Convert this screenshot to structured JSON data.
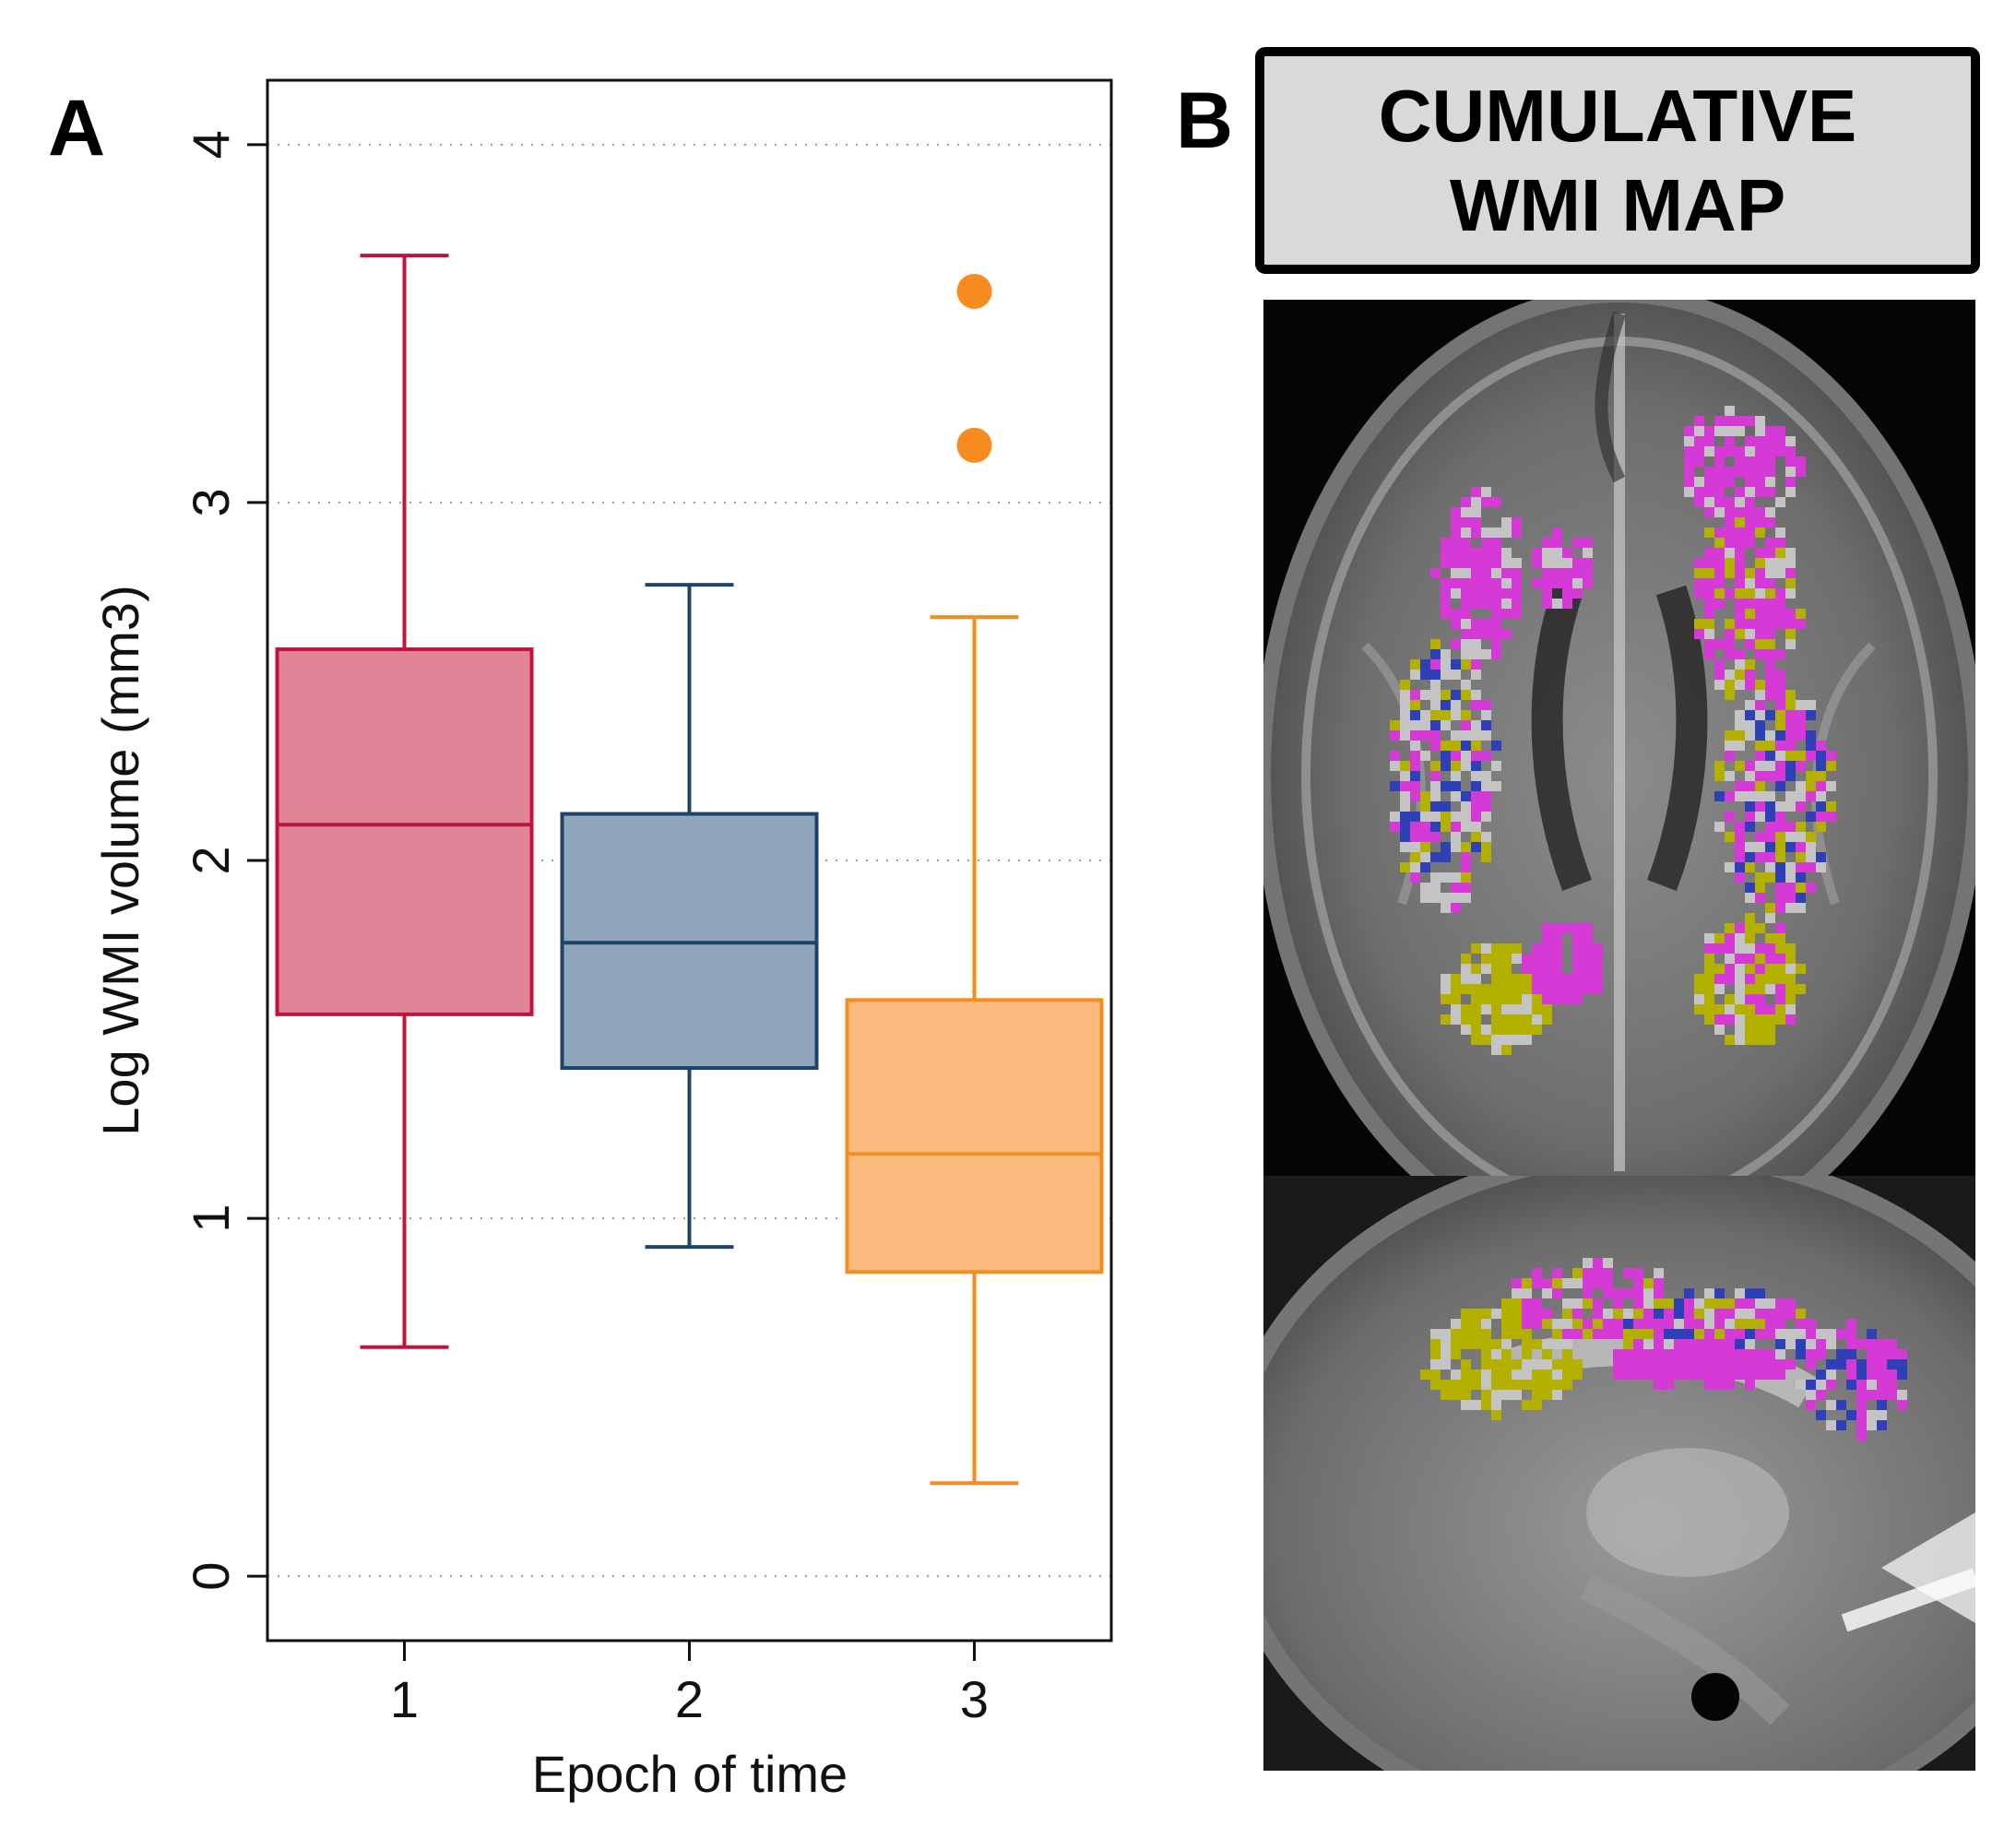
{
  "panels": {
    "a_label": "A",
    "b_label": "B"
  },
  "chart_data": {
    "type": "box",
    "xlabel": "Epoch of time",
    "ylabel": "Log WMI volume (mm3)",
    "ylim": [
      -0.18,
      4.18
    ],
    "yticks": [
      0,
      1,
      2,
      3,
      4
    ],
    "grid": "horizontal dotted",
    "categories": [
      "1",
      "2",
      "3"
    ],
    "boxes": [
      {
        "category": "1",
        "min": 0.64,
        "q1": 1.57,
        "median": 2.1,
        "q3": 2.59,
        "max": 3.69,
        "outliers": [],
        "edge": "#c0143c",
        "fill": "#e08598"
      },
      {
        "category": "2",
        "min": 0.92,
        "q1": 1.42,
        "median": 1.77,
        "q3": 2.13,
        "max": 2.77,
        "outliers": [],
        "edge": "#1f4468",
        "fill": "#8fa6bd"
      },
      {
        "category": "3",
        "min": 0.26,
        "q1": 0.85,
        "median": 1.18,
        "q3": 1.61,
        "max": 2.68,
        "outliers": [
          3.16,
          3.59
        ],
        "edge": "#f68b1f",
        "fill": "#fcbc80"
      }
    ]
  },
  "map": {
    "title_line1": "CUMULATIVE",
    "title_line2": "WMI MAP",
    "colors": {
      "magenta": "#d63ad6",
      "yellow": "#b3b000",
      "gray": "#c4c4c4",
      "blue": "#2f3fb5"
    }
  }
}
